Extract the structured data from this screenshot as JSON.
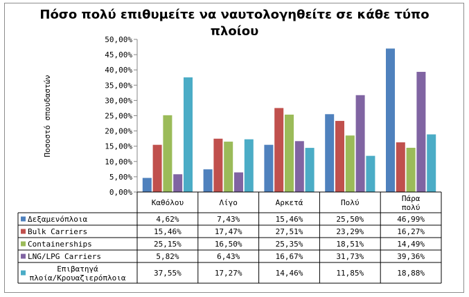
{
  "chart_data": {
    "type": "bar",
    "title_lines": [
      "Πόσο πολύ επιθυμείτε να ναυτολογηθείτε σε κάθε τύπο",
      "πλοίου"
    ],
    "ylabel": "Ποσοστό σπουδαστών",
    "xlabel": "",
    "ylim": [
      0,
      50
    ],
    "y_ticks": [
      "0,00%",
      "5,00%",
      "10,00%",
      "15,00%",
      "20,00%",
      "25,00%",
      "30,00%",
      "35,00%",
      "40,00%",
      "45,00%",
      "50,00%"
    ],
    "grid": false,
    "legend": "data-table",
    "categories": [
      "Καθόλου",
      "Λίγο",
      "Αρκετά",
      "Πολύ",
      "Πάρα πολύ"
    ],
    "series": [
      {
        "name": "Δεξαμενόπλοια",
        "color": "#4F81BD",
        "values": [
          4.62,
          7.43,
          15.46,
          25.5,
          46.99
        ],
        "labels": [
          "4,62%",
          "7,43%",
          "15,46%",
          "25,50%",
          "46,99%"
        ]
      },
      {
        "name": "Bulk Carriers",
        "color": "#C0504D",
        "values": [
          15.46,
          17.47,
          27.51,
          23.29,
          16.27
        ],
        "labels": [
          "15,46%",
          "17,47%",
          "27,51%",
          "23,29%",
          "16,27%"
        ]
      },
      {
        "name": "Containerships",
        "color": "#9BBB59",
        "values": [
          25.15,
          16.5,
          25.35,
          18.51,
          14.49
        ],
        "labels": [
          "25,15%",
          "16,50%",
          "25,35%",
          "18,51%",
          "14,49%"
        ]
      },
      {
        "name": "LNG/LPG Carriers",
        "color": "#8064A2",
        "values": [
          5.82,
          6.43,
          16.67,
          31.73,
          39.36
        ],
        "labels": [
          "5,82%",
          "6,43%",
          "16,67%",
          "31,73%",
          "39,36%"
        ]
      },
      {
        "name": "Επιβατηγά πλοία/Κρουαζιερόπλοια",
        "name_lines": [
          "Επιβατηγά",
          "πλοία/Κρουαζιερόπλοια"
        ],
        "color": "#4BACC6",
        "values": [
          37.55,
          17.27,
          14.46,
          11.85,
          18.88
        ],
        "labels": [
          "37,55%",
          "17,27%",
          "14,46%",
          "11,85%",
          "18,88%"
        ]
      }
    ]
  }
}
